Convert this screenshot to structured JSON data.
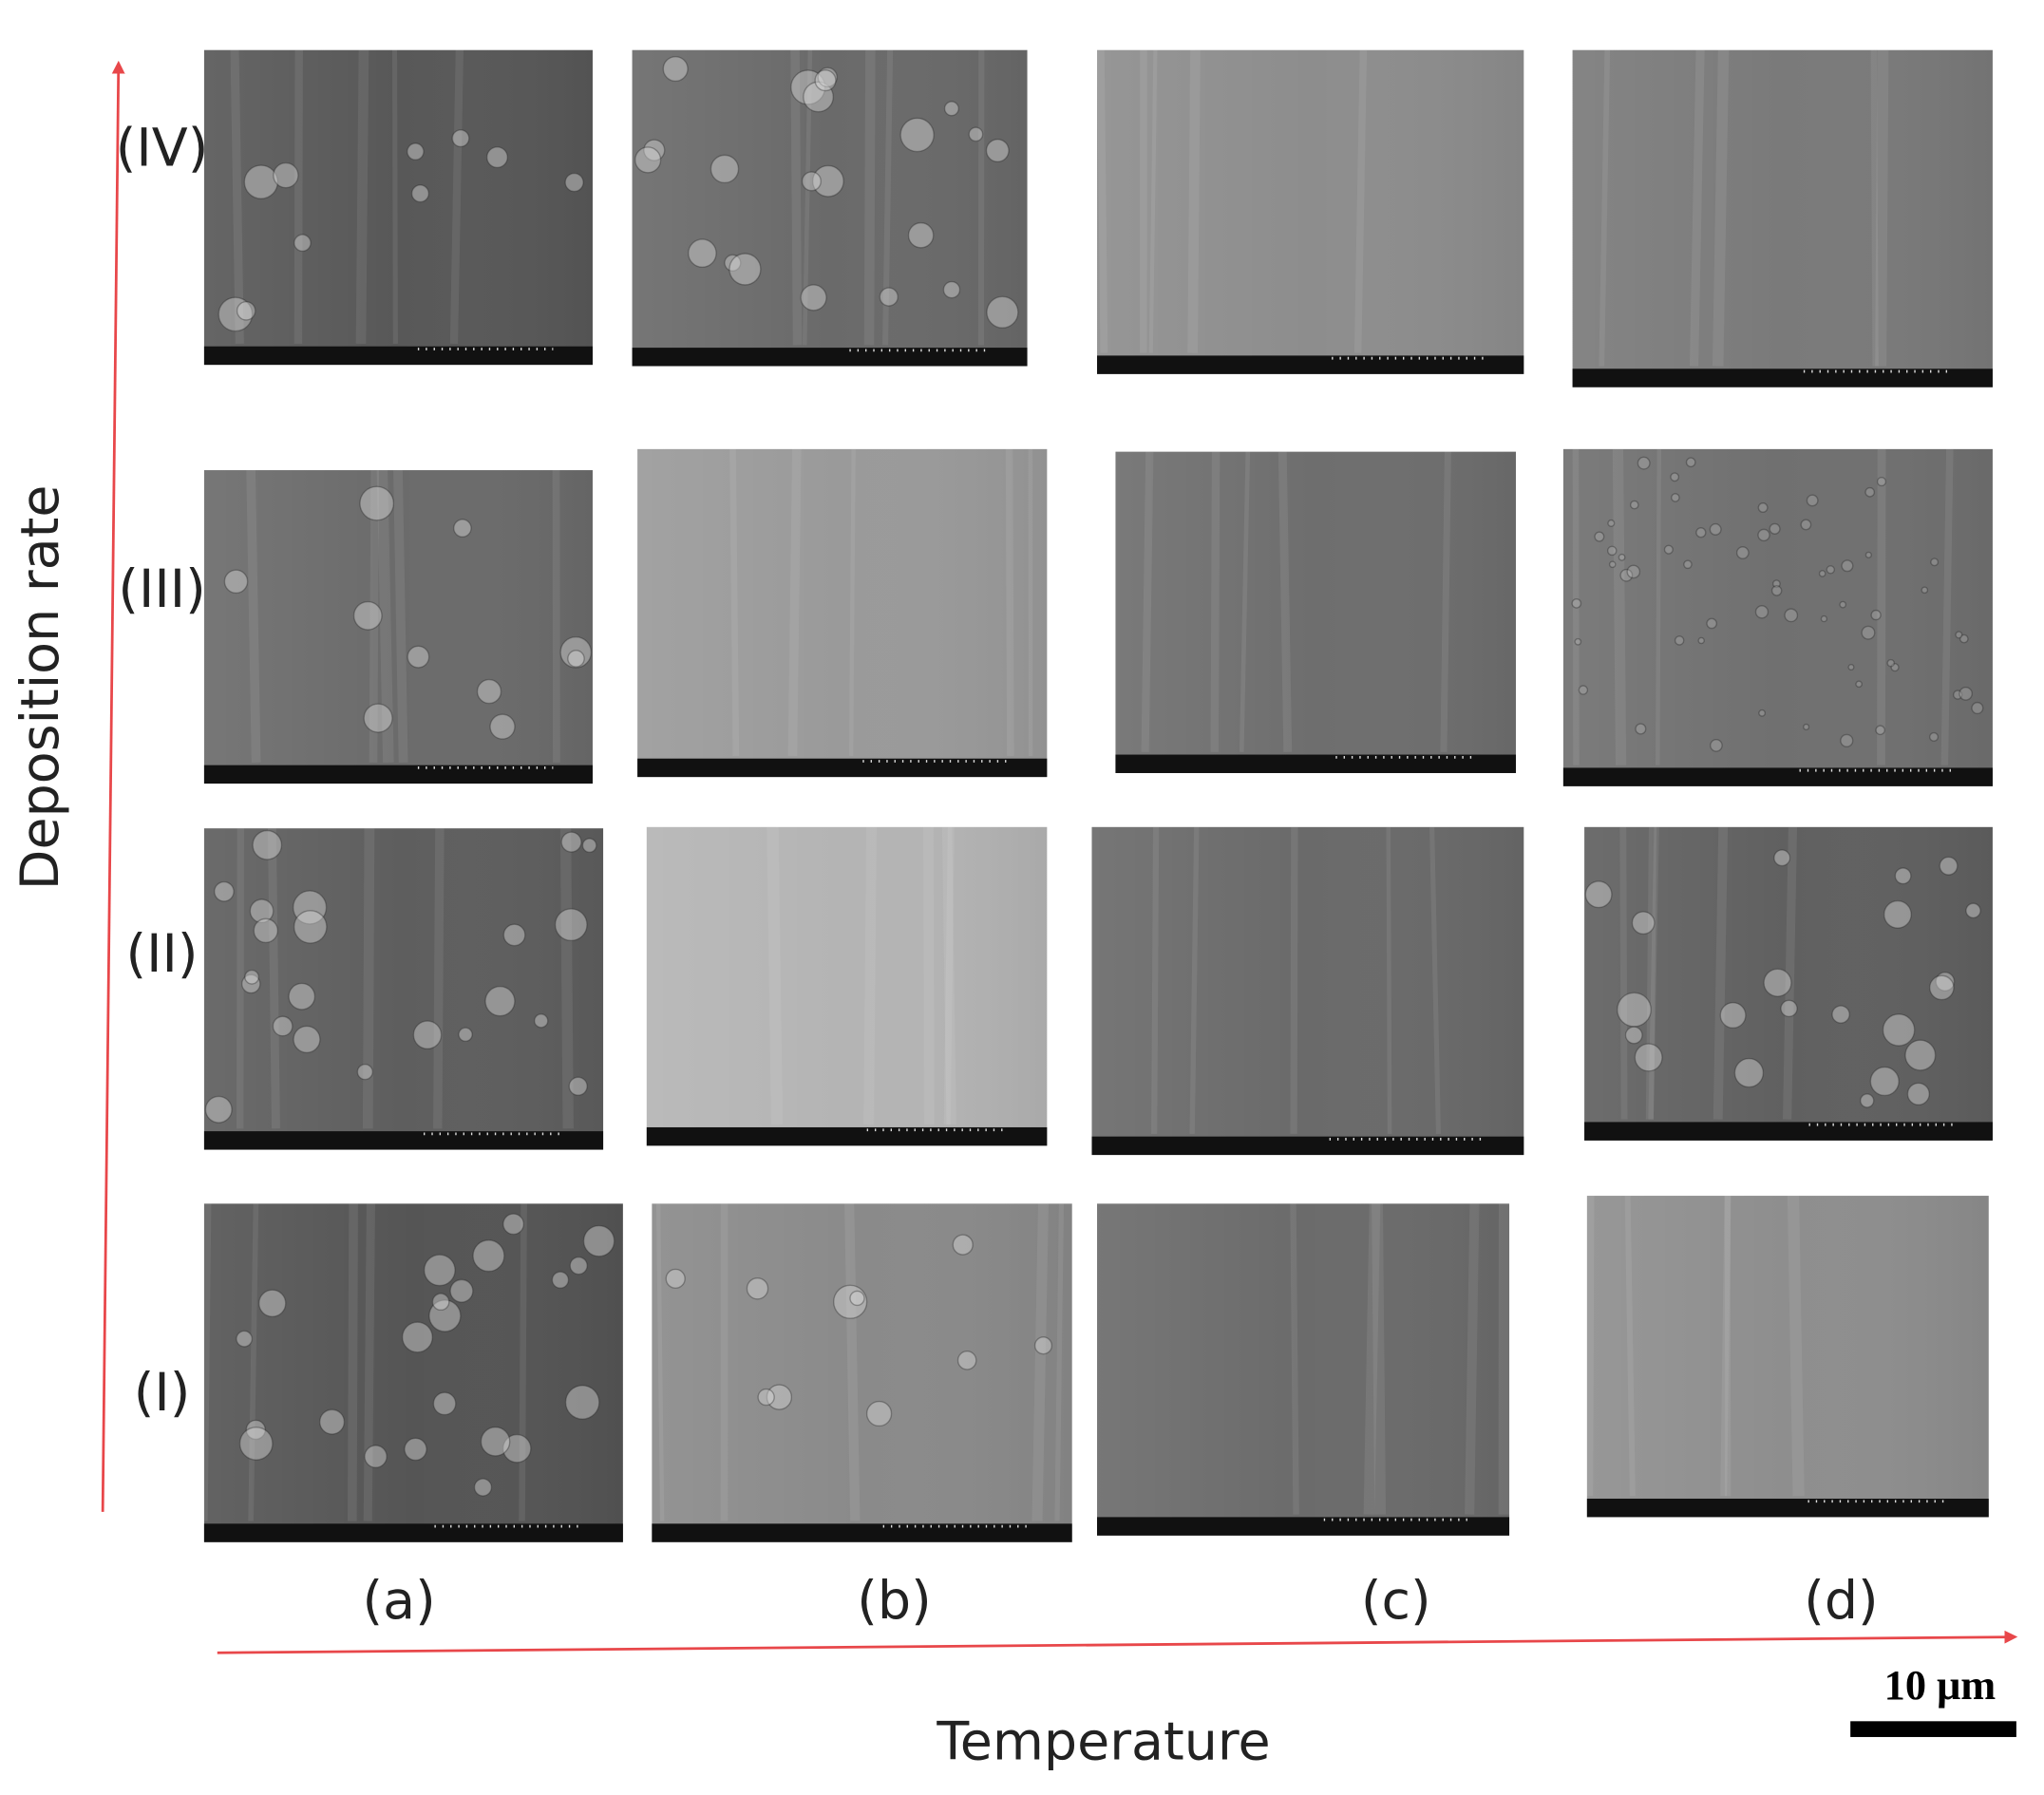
{
  "axes": {
    "y_label": "Deposition rate",
    "x_label": "Temperature"
  },
  "rows": [
    "(IV)",
    "(III)",
    "(II)",
    "(I)"
  ],
  "columns": [
    "(a)",
    "(b)",
    "(c)",
    "(d)"
  ],
  "scale_bar": "10 μm"
}
